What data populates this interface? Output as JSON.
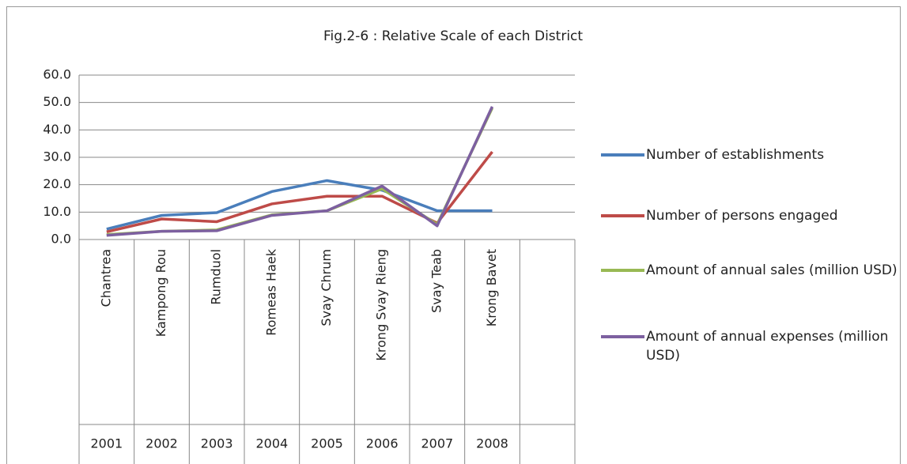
{
  "chart_data": {
    "type": "line",
    "title": "Fig.2-6 : Relative Scale of each District",
    "categories": [
      "Chantrea",
      "Kampong Rou",
      "Rumduol",
      "Romeas Haek",
      "Svay Chrum",
      "Krong Svay Rieng",
      "Svay Teab",
      "Krong Bavet",
      null
    ],
    "years": [
      "2001",
      "2002",
      "2003",
      "2004",
      "2005",
      "2006",
      "2007",
      "2008",
      null
    ],
    "series": [
      {
        "name": "Number of establishments",
        "color": "#4a7ebb",
        "values": [
          3.8,
          8.8,
          9.8,
          17.5,
          21.5,
          18,
          10.5,
          10.5,
          null
        ]
      },
      {
        "name": "Number of persons engaged",
        "color": "#be4b48",
        "values": [
          2.8,
          7.5,
          6.5,
          13,
          15.8,
          15.8,
          6,
          32,
          null
        ]
      },
      {
        "name": "Amount of annual sales (million USD)",
        "color": "#98b954",
        "values": [
          1.8,
          3,
          3.5,
          9,
          10.5,
          18.5,
          5.5,
          48,
          null
        ]
      },
      {
        "name": "Amount of annual expenses (million USD)",
        "color": "#7d60a0",
        "values": [
          1.5,
          3,
          3.2,
          8.8,
          10.5,
          19.5,
          5,
          48.5,
          null
        ]
      }
    ],
    "ylim": [
      0,
      60
    ],
    "yticks": [
      {
        "value": 0,
        "label": "0.0"
      },
      {
        "value": 10,
        "label": "10.0"
      },
      {
        "value": 20,
        "label": "20.0"
      },
      {
        "value": 30,
        "label": "30.0"
      },
      {
        "value": 40,
        "label": "40.0"
      },
      {
        "value": 50,
        "label": "50.0"
      },
      {
        "value": 60,
        "label": "60.0"
      }
    ],
    "grid": true
  }
}
